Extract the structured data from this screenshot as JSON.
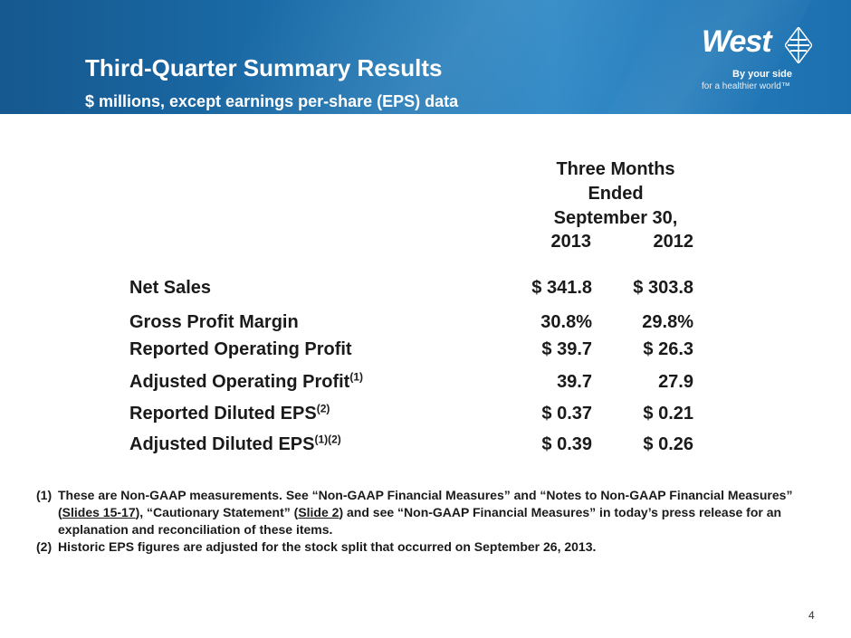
{
  "header": {
    "title": "Third-Quarter Summary Results",
    "subtitle": "$ millions, except earnings per-share (EPS) data"
  },
  "logo": {
    "brand": "West",
    "tagline_line1": "By your side",
    "tagline_line2": "for a healthier world™"
  },
  "table": {
    "column_header_lines": [
      "Three Months",
      "Ended",
      "September 30,"
    ],
    "years": [
      "2013",
      "2012"
    ],
    "rows": [
      {
        "label": "Net Sales",
        "sup": "",
        "v2013": "$ 341.8",
        "v2012": "$ 303.8"
      },
      {
        "label": "Gross Profit Margin",
        "sup": "",
        "v2013": "30.8%",
        "v2012": "29.8%"
      },
      {
        "label": "Reported Operating Profit",
        "sup": "",
        "v2013": "$ 39.7",
        "v2012": "$ 26.3"
      },
      {
        "label": "Adjusted Operating Profit",
        "sup": "(1)",
        "v2013": "39.7",
        "v2012": "27.9"
      },
      {
        "label": "Reported Diluted EPS",
        "sup": "(2)",
        "v2013": "$ 0.37",
        "v2012": "$ 0.21"
      },
      {
        "label": "Adjusted Diluted EPS",
        "sup": "(1)(2)",
        "v2013": "$ 0.39",
        "v2012": "$ 0.26"
      }
    ]
  },
  "notes": {
    "n1_num": "(1)",
    "n1_a": "These are Non-GAAP measurements. See “Non-GAAP Financial Measures” and “Notes to Non-GAAP Financial Measures” (",
    "n1_link1": "Slides 15-17",
    "n1_b": "), “Cautionary Statement” (",
    "n1_link2": "Slide 2",
    "n1_c": ") and see “Non-GAAP Financial Measures” in today’s press release for an explanation and reconciliation of these items.",
    "n2_num": "(2)",
    "n2": "Historic EPS figures are adjusted for the stock split that occurred on September 26, 2013."
  },
  "page_number": "4",
  "colors": {
    "banner": "#1a6aa6",
    "text": "#1a1a1a"
  }
}
